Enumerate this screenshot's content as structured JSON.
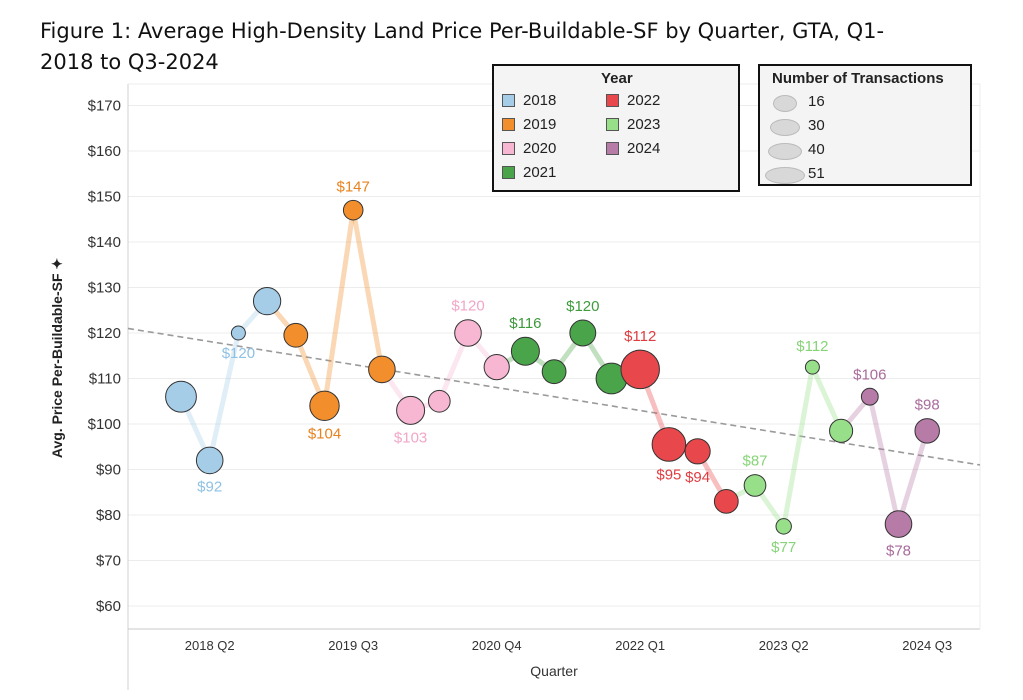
{
  "title": "Figure 1: Average High-Density Land Price Per-Buildable-SF by Quarter, GTA, Q1-2018 to Q3-2024",
  "chart_data": {
    "type": "scatter",
    "title": "Figure 1: Average High-Density Land Price Per-Buildable-SF by Quarter, GTA, Q1-2018 to Q3-2024",
    "xlabel": "Quarter",
    "ylabel": "Avg. Price Per-Buildable-SF",
    "ylim": [
      55,
      172
    ],
    "y_ticks": [
      "$60",
      "$70",
      "$80",
      "$90",
      "$100",
      "$110",
      "$120",
      "$130",
      "$140",
      "$150",
      "$160",
      "$170"
    ],
    "x_tick_labels": [
      "2018 Q2",
      "2019 Q3",
      "2020 Q4",
      "2022 Q1",
      "2023 Q2",
      "2024 Q3"
    ],
    "x_tick_index": [
      1,
      6,
      11,
      16,
      21,
      26
    ],
    "grid": true,
    "trend_line": {
      "style": "dashed",
      "start": 121,
      "end": 91
    },
    "colors": {
      "2018": "#a6cde8",
      "2019": "#f28e2b",
      "2020": "#f7b6d2",
      "2021": "#4aa54a",
      "2022": "#e8474b",
      "2023": "#98df8a",
      "2024": "#b77ba8"
    },
    "label_colors": {
      "2018": "#8fc1e3",
      "2019": "#e8821e",
      "2020": "#f2a6c8",
      "2021": "#3d9a3d",
      "2022": "#e03c40",
      "2023": "#86d477",
      "2024": "#a96b9b"
    },
    "series": [
      {
        "name": "2018",
        "points": [
          {
            "quarter": "2018 Q1",
            "value": 106,
            "n": 40
          },
          {
            "quarter": "2018 Q2",
            "value": 92,
            "n": 34,
            "label": "$92"
          },
          {
            "quarter": "2018 Q3",
            "value": 120,
            "n": 16,
            "label": "$120"
          },
          {
            "quarter": "2018 Q4",
            "value": 127,
            "n": 35
          }
        ]
      },
      {
        "name": "2019",
        "points": [
          {
            "quarter": "2019 Q1",
            "value": 119.5,
            "n": 30
          },
          {
            "quarter": "2019 Q2",
            "value": 104,
            "n": 38,
            "label": "$104"
          },
          {
            "quarter": "2019 Q3",
            "value": 147,
            "n": 24,
            "label": "$147"
          },
          {
            "quarter": "2019 Q4",
            "value": 112,
            "n": 34
          }
        ]
      },
      {
        "name": "2020",
        "points": [
          {
            "quarter": "2020 Q1",
            "value": 103,
            "n": 36,
            "label": "$103"
          },
          {
            "quarter": "2020 Q2",
            "value": 105,
            "n": 27
          },
          {
            "quarter": "2020 Q3",
            "value": 120,
            "n": 34,
            "label": "$120"
          },
          {
            "quarter": "2020 Q4",
            "value": 112.5,
            "n": 32
          }
        ]
      },
      {
        "name": "2021",
        "points": [
          {
            "quarter": "2021 Q1",
            "value": 116,
            "n": 36,
            "label": "$116"
          },
          {
            "quarter": "2021 Q2",
            "value": 111.5,
            "n": 30
          },
          {
            "quarter": "2021 Q3",
            "value": 120,
            "n": 33,
            "label": "$120"
          },
          {
            "quarter": "2021 Q4",
            "value": 110,
            "n": 40
          }
        ]
      },
      {
        "name": "2022",
        "points": [
          {
            "quarter": "2022 Q1",
            "value": 112,
            "n": 51,
            "label": "$112"
          },
          {
            "quarter": "2022 Q2",
            "value": 95.5,
            "n": 44,
            "label": "$95"
          },
          {
            "quarter": "2022 Q3",
            "value": 94,
            "n": 32,
            "label": "$94"
          },
          {
            "quarter": "2022 Q4",
            "value": 83,
            "n": 30
          }
        ]
      },
      {
        "name": "2023",
        "points": [
          {
            "quarter": "2023 Q1",
            "value": 86.5,
            "n": 27,
            "label": "$87"
          },
          {
            "quarter": "2023 Q2",
            "value": 77.5,
            "n": 18,
            "label": "$77"
          },
          {
            "quarter": "2023 Q3",
            "value": 112.5,
            "n": 16,
            "label": "$112"
          },
          {
            "quarter": "2023 Q4",
            "value": 98.5,
            "n": 29
          }
        ]
      },
      {
        "name": "2024",
        "points": [
          {
            "quarter": "2024 Q1",
            "value": 106,
            "n": 20,
            "label": "$106"
          },
          {
            "quarter": "2024 Q2",
            "value": 78,
            "n": 34,
            "label": "$78"
          },
          {
            "quarter": "2024 Q3",
            "value": 98.5,
            "n": 31,
            "label": "$98"
          }
        ]
      }
    ]
  },
  "legend_year": {
    "title": "Year",
    "items": [
      "2018",
      "2019",
      "2020",
      "2021",
      "2022",
      "2023",
      "2024"
    ]
  },
  "legend_size": {
    "title": "Number of Transactions",
    "items": [
      "16",
      "30",
      "40",
      "51"
    ]
  }
}
